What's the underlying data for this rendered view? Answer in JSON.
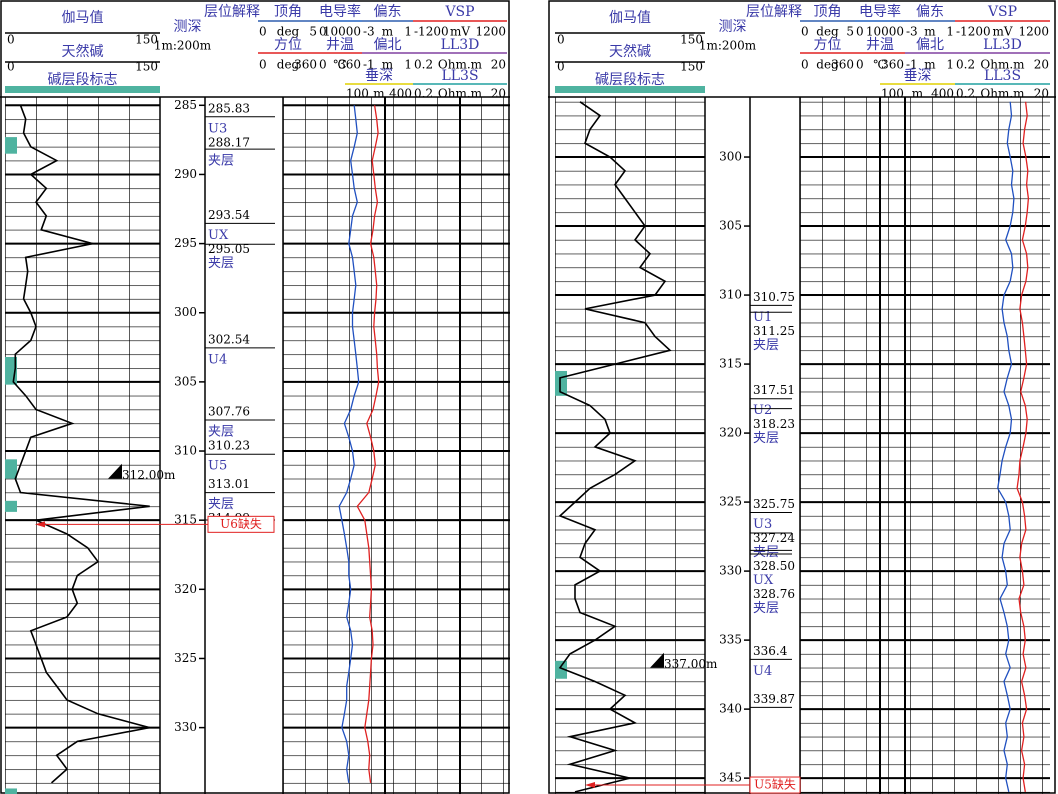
{
  "chart_data": [
    {
      "type": "well-log",
      "header": {
        "gamma": {
          "name": "伽马值",
          "min": 0,
          "max": 150
        },
        "alkali": {
          "name": "天然碱",
          "min": 0,
          "max": 150
        },
        "zone_flag": "碱层段标志",
        "depth_title": "测深",
        "scale": "1m:200m",
        "layer_title": "层位解释",
        "tracks": [
          [
            {
              "name": "顶角",
              "min": 0,
              "unit": "deg",
              "max": 5,
              "color": "#2f5faf"
            },
            {
              "name": "电导率",
              "min": 0,
              "max": 10000,
              "color": "#2060c0"
            },
            {
              "name": "偏东",
              "min": -3,
              "unit": "m",
              "max": 1,
              "color": "#2f5faf"
            },
            {
              "name": "VSP",
              "min": -1200,
              "unit": "mV",
              "max": 1200,
              "color": "#e02020"
            }
          ],
          [
            {
              "name": "方位",
              "min": 0,
              "unit": "deg",
              "max": 360,
              "color": "#e02020"
            },
            {
              "name": "井温",
              "min": 0,
              "unit": "℃",
              "max": 360,
              "color": "#e02020"
            },
            {
              "name": "偏北",
              "min": -1,
              "unit": "m",
              "max": 1,
              "color": "#8040a0"
            },
            {
              "name": "LL3D",
              "min": 0.2,
              "unit": "Ohm.m",
              "max": 20,
              "color": "#8040a0"
            }
          ],
          [
            {
              "name": "垂深",
              "min": 100,
              "unit": "m",
              "max": 400,
              "color": "#e0d000"
            },
            {
              "name": "LL3S",
              "min": 0.2,
              "unit": "Ohm.m",
              "max": 20,
              "color": "#20a0a0"
            }
          ]
        ]
      },
      "ylim": [
        284.4,
        334.8
      ],
      "yticks": [
        285,
        290,
        295,
        300,
        305,
        310,
        315,
        320,
        325,
        330
      ],
      "grid": true,
      "log_scale": true,
      "depth": [
        285,
        286,
        287,
        288,
        289,
        290,
        291,
        292,
        293,
        294,
        295,
        296,
        297,
        298,
        299,
        300,
        301,
        302,
        303,
        304,
        305,
        306,
        307,
        308,
        309,
        310,
        311,
        312,
        313,
        314,
        315,
        316,
        317,
        318,
        319,
        320,
        321,
        322,
        323,
        324,
        325,
        326,
        327,
        328,
        329,
        330,
        331,
        332,
        333,
        334
      ],
      "series": [
        {
          "color": "#000000",
          "values": [
            15,
            20,
            18,
            25,
            50,
            25,
            40,
            30,
            40,
            35,
            85,
            20,
            22,
            20,
            18,
            25,
            30,
            25,
            10,
            10,
            8,
            20,
            30,
            65,
            25,
            20,
            15,
            10,
            15,
            140,
            30,
            60,
            80,
            90,
            70,
            65,
            70,
            60,
            25,
            30,
            35,
            40,
            50,
            60,
            90,
            140,
            70,
            50,
            60,
            45
          ]
        },
        {
          "color": "#e02020",
          "values": [
            3.5,
            3.8,
            4.0,
            3.6,
            3.2,
            3.4,
            3.6,
            3.9,
            3.5,
            3.3,
            3.0,
            3.4,
            3.6,
            3.8,
            3.7,
            3.5,
            3.4,
            3.6,
            3.8,
            3.9,
            4.1,
            3.7,
            3.3,
            2.6,
            3.0,
            3.4,
            3.6,
            3.2,
            2.8,
            1.8,
            2.4,
            2.6,
            2.8,
            2.9,
            3.0,
            3.1,
            3.0,
            2.9,
            3.2,
            3.3,
            3.1,
            3.0,
            2.9,
            2.8,
            2.6,
            2.4,
            2.7,
            2.9,
            2.8,
            3.0
          ]
        },
        {
          "color": "#2050c0",
          "values": [
            1.6,
            1.7,
            1.8,
            1.6,
            1.4,
            1.5,
            1.6,
            1.8,
            1.5,
            1.4,
            1.3,
            1.5,
            1.6,
            1.7,
            1.6,
            1.5,
            1.5,
            1.6,
            1.7,
            1.8,
            1.9,
            1.6,
            1.4,
            1.1,
            1.3,
            1.5,
            1.6,
            1.4,
            1.2,
            0.9,
            1.0,
            1.1,
            1.2,
            1.3,
            1.3,
            1.4,
            1.3,
            1.2,
            1.4,
            1.5,
            1.4,
            1.3,
            1.2,
            1.2,
            1.1,
            1.0,
            1.2,
            1.3,
            1.2,
            1.3
          ]
        }
      ],
      "alkali_color": "#4fb3a0",
      "alkali_zones": [
        [
          287.3,
          288.5
        ],
        [
          303.2,
          305.2
        ],
        [
          310.6,
          312
        ],
        [
          313.6,
          314.4
        ],
        [
          334.4,
          334.8
        ]
      ],
      "layers": {
        "boundaries": [
          285.83,
          288.17,
          293.54,
          295.05,
          302.54,
          307.76,
          310.23,
          313.01,
          314.99
        ],
        "names": [
          "U3",
          "夹层",
          "UX",
          "夹层",
          "U4",
          "夹层",
          "U5",
          "夹层"
        ]
      },
      "marker": {
        "value": 312,
        "label": "312.00m"
      },
      "missing": {
        "label": "U6缺失",
        "depth": 315.3
      }
    },
    {
      "type": "well-log",
      "header": {
        "gamma": {
          "name": "伽马值",
          "min": 0,
          "max": 150
        },
        "alkali": {
          "name": "天然碱",
          "min": 0,
          "max": 150
        },
        "zone_flag": "碱层段标志",
        "depth_title": "测深",
        "scale": "1m:200m",
        "layer_title": "层位解释",
        "tracks": [
          [
            {
              "name": "顶角",
              "min": 0,
              "unit": "deg",
              "max": 5,
              "color": "#2f5faf"
            },
            {
              "name": "电导率",
              "min": 0,
              "max": 10000,
              "color": "#2060c0"
            },
            {
              "name": "偏东",
              "min": -3,
              "unit": "m",
              "max": 1,
              "color": "#2f5faf"
            },
            {
              "name": "VSP",
              "min": -1200,
              "unit": "mV",
              "max": 1200,
              "color": "#e02020"
            }
          ],
          [
            {
              "name": "方位",
              "min": 0,
              "unit": "deg",
              "max": 360,
              "color": "#e02020"
            },
            {
              "name": "井温",
              "min": 0,
              "unit": "℃",
              "max": 360,
              "color": "#e02020"
            },
            {
              "name": "偏北",
              "min": -1,
              "unit": "m",
              "max": 1,
              "color": "#8040a0"
            },
            {
              "name": "LL3D",
              "min": 0.2,
              "unit": "Ohm.m",
              "max": 20,
              "color": "#8040a0"
            }
          ],
          [
            {
              "name": "垂深",
              "min": 100,
              "unit": "m",
              "max": 400,
              "color": "#e0d000"
            },
            {
              "name": "LL3S",
              "min": 0.2,
              "unit": "Ohm.m",
              "max": 20,
              "color": "#20a0a0"
            }
          ]
        ]
      },
      "ylim": [
        295.65,
        346.15
      ],
      "yticks": [
        300,
        305,
        310,
        315,
        320,
        325,
        330,
        335,
        340,
        345
      ],
      "grid": true,
      "log_scale": true,
      "depth": [
        296,
        297,
        298,
        299,
        300,
        301,
        302,
        303,
        304,
        305,
        306,
        307,
        308,
        309,
        310,
        311,
        312,
        313,
        314,
        315,
        316,
        317,
        318,
        319,
        320,
        321,
        322,
        323,
        324,
        325,
        326,
        327,
        328,
        329,
        330,
        331,
        332,
        333,
        334,
        335,
        336,
        337,
        338,
        339,
        340,
        341,
        342,
        343,
        344,
        345,
        346
      ],
      "series": [
        {
          "color": "#000000",
          "values": [
            25,
            45,
            35,
            30,
            55,
            70,
            60,
            70,
            80,
            90,
            80,
            95,
            85,
            110,
            100,
            30,
            90,
            100,
            115,
            60,
            5,
            5,
            35,
            50,
            55,
            40,
            80,
            60,
            35,
            20,
            5,
            40,
            30,
            25,
            45,
            20,
            20,
            25,
            60,
            40,
            15,
            5,
            40,
            70,
            55,
            80,
            15,
            60,
            15,
            75,
            20
          ]
        },
        {
          "color": "#e02020",
          "values": [
            6.5,
            7.0,
            6.2,
            5.8,
            6.6,
            7.2,
            6.8,
            7.4,
            7.0,
            6.4,
            5.6,
            6.8,
            7.2,
            6.6,
            5.4,
            5.0,
            5.6,
            6.0,
            6.4,
            6.8,
            6.0,
            5.2,
            6.4,
            7.0,
            6.6,
            5.8,
            5.0,
            4.8,
            4.4,
            5.6,
            6.2,
            6.6,
            5.4,
            5.0,
            5.6,
            6.0,
            4.8,
            5.2,
            6.0,
            6.4,
            5.8,
            6.6,
            5.4,
            6.2,
            6.8,
            5.6,
            6.0,
            5.4,
            6.2,
            5.8,
            6.4
          ]
        },
        {
          "color": "#2050c0",
          "values": [
            3.2,
            3.4,
            3.0,
            2.8,
            3.2,
            3.6,
            3.4,
            3.8,
            3.6,
            3.2,
            2.6,
            3.4,
            3.6,
            3.2,
            2.4,
            2.2,
            2.4,
            2.8,
            3.0,
            3.4,
            2.8,
            2.4,
            3.0,
            3.4,
            3.2,
            2.6,
            2.2,
            2.0,
            1.8,
            2.6,
            3.0,
            3.2,
            2.4,
            2.2,
            2.6,
            2.8,
            2.0,
            2.4,
            2.8,
            3.0,
            2.6,
            3.2,
            2.4,
            2.8,
            3.2,
            2.6,
            2.8,
            2.4,
            2.8,
            2.6,
            3.0
          ]
        }
      ],
      "alkali_color": "#4fb3a0",
      "alkali_zones": [
        [
          315.5,
          317.3
        ],
        [
          336.5,
          337.8
        ]
      ],
      "layers": {
        "boundaries": [
          310.75,
          311.25,
          317.51,
          318.23,
          325.75,
          327.24,
          {
            "value": 328.5,
            "label": "328.50"
          },
          328.76,
          336.4,
          339.87
        ],
        "names": [
          "U1",
          "夹层",
          "U2",
          "夹层",
          "U3",
          "夹层",
          "UX",
          "夹层",
          "U4"
        ]
      },
      "marker": {
        "value": 337,
        "label": "337.00m"
      },
      "missing": {
        "label": "U5缺失",
        "depth": 345.5
      }
    }
  ]
}
